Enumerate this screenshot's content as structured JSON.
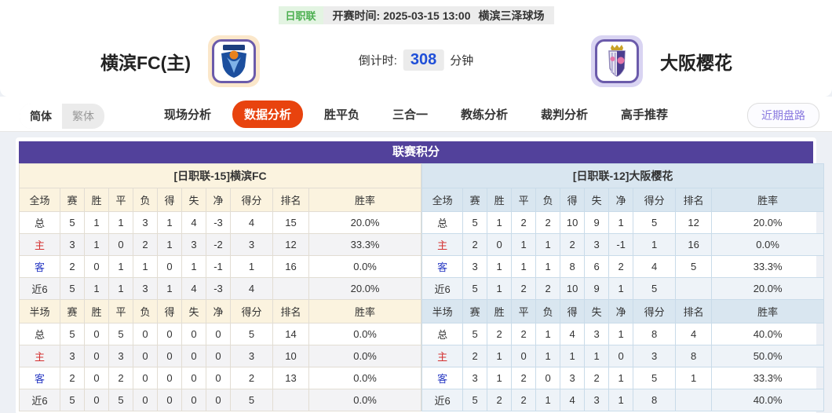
{
  "match_bar": {
    "league_badge": "日职联",
    "kickoff_label": "开赛时间:",
    "kickoff_time": "2025-03-15 13:00",
    "venue": "横滨三泽球场"
  },
  "teams": {
    "home_name": "横滨FC(主)",
    "away_name": "大阪樱花",
    "countdown_label": "倒计时:",
    "countdown_value": "308",
    "countdown_unit": "分钟"
  },
  "nav": {
    "lang_simplified": "简体",
    "lang_traditional": "繁体",
    "tabs": [
      {
        "label": "现场分析",
        "active": false
      },
      {
        "label": "数据分析",
        "active": true
      },
      {
        "label": "胜平负",
        "active": false
      },
      {
        "label": "三合一",
        "active": false
      },
      {
        "label": "教练分析",
        "active": false
      },
      {
        "label": "裁判分析",
        "active": false
      },
      {
        "label": "高手推荐",
        "active": false
      }
    ],
    "recent_trend_button": "近期盘路"
  },
  "standings": {
    "title": "联赛积分",
    "columns": [
      "赛",
      "胜",
      "平",
      "负",
      "得",
      "失",
      "净",
      "得分",
      "排名",
      "胜率"
    ],
    "full_label": "全场",
    "half_label": "半场",
    "left": {
      "team_header": "[日职联-15]横滨FC",
      "full_rows": [
        {
          "label": "总",
          "type": "total",
          "values": [
            "5",
            "1",
            "1",
            "3",
            "1",
            "4",
            "-3",
            "4",
            "15",
            "20.0%"
          ]
        },
        {
          "label": "主",
          "type": "home",
          "values": [
            "3",
            "1",
            "0",
            "2",
            "1",
            "3",
            "-2",
            "3",
            "12",
            "33.3%"
          ]
        },
        {
          "label": "客",
          "type": "away",
          "values": [
            "2",
            "0",
            "1",
            "1",
            "0",
            "1",
            "-1",
            "1",
            "16",
            "0.0%"
          ]
        },
        {
          "label": "近6",
          "type": "recent",
          "values": [
            "5",
            "1",
            "1",
            "3",
            "1",
            "4",
            "-3",
            "4",
            "",
            "20.0%"
          ]
        }
      ],
      "half_rows": [
        {
          "label": "总",
          "type": "total",
          "values": [
            "5",
            "0",
            "5",
            "0",
            "0",
            "0",
            "0",
            "5",
            "14",
            "0.0%"
          ]
        },
        {
          "label": "主",
          "type": "home",
          "values": [
            "3",
            "0",
            "3",
            "0",
            "0",
            "0",
            "0",
            "3",
            "10",
            "0.0%"
          ]
        },
        {
          "label": "客",
          "type": "away",
          "values": [
            "2",
            "0",
            "2",
            "0",
            "0",
            "0",
            "0",
            "2",
            "13",
            "0.0%"
          ]
        },
        {
          "label": "近6",
          "type": "recent",
          "values": [
            "5",
            "0",
            "5",
            "0",
            "0",
            "0",
            "0",
            "5",
            "",
            "0.0%"
          ]
        }
      ]
    },
    "right": {
      "team_header": "[日职联-12]大阪樱花",
      "full_rows": [
        {
          "label": "总",
          "type": "total",
          "values": [
            "5",
            "1",
            "2",
            "2",
            "10",
            "9",
            "1",
            "5",
            "12",
            "20.0%"
          ]
        },
        {
          "label": "主",
          "type": "home",
          "values": [
            "2",
            "0",
            "1",
            "1",
            "2",
            "3",
            "-1",
            "1",
            "16",
            "0.0%"
          ]
        },
        {
          "label": "客",
          "type": "away",
          "values": [
            "3",
            "1",
            "1",
            "1",
            "8",
            "6",
            "2",
            "4",
            "5",
            "33.3%"
          ]
        },
        {
          "label": "近6",
          "type": "recent",
          "values": [
            "5",
            "1",
            "2",
            "2",
            "10",
            "9",
            "1",
            "5",
            "",
            "20.0%"
          ]
        }
      ],
      "half_rows": [
        {
          "label": "总",
          "type": "total",
          "values": [
            "5",
            "2",
            "2",
            "1",
            "4",
            "3",
            "1",
            "8",
            "4",
            "40.0%"
          ]
        },
        {
          "label": "主",
          "type": "home",
          "values": [
            "2",
            "1",
            "0",
            "1",
            "1",
            "1",
            "0",
            "3",
            "8",
            "50.0%"
          ]
        },
        {
          "label": "客",
          "type": "away",
          "values": [
            "3",
            "1",
            "2",
            "0",
            "3",
            "2",
            "1",
            "5",
            "1",
            "33.3%"
          ]
        },
        {
          "label": "近6",
          "type": "recent",
          "values": [
            "5",
            "2",
            "2",
            "1",
            "4",
            "3",
            "1",
            "8",
            "",
            "40.0%"
          ]
        }
      ]
    }
  },
  "colors": {
    "active_tab_orange": "#e8430e",
    "section_header_purple": "#52419b",
    "home_panel_cream": "#fbf3df",
    "away_panel_blue": "#d9e6f0",
    "home_label_red": "#d43030",
    "away_label_blue": "#2b3cc4",
    "badge_green": "#4caf50",
    "countdown_blue": "#1f4fd8",
    "trend_button_purple": "#8a7ae0"
  }
}
